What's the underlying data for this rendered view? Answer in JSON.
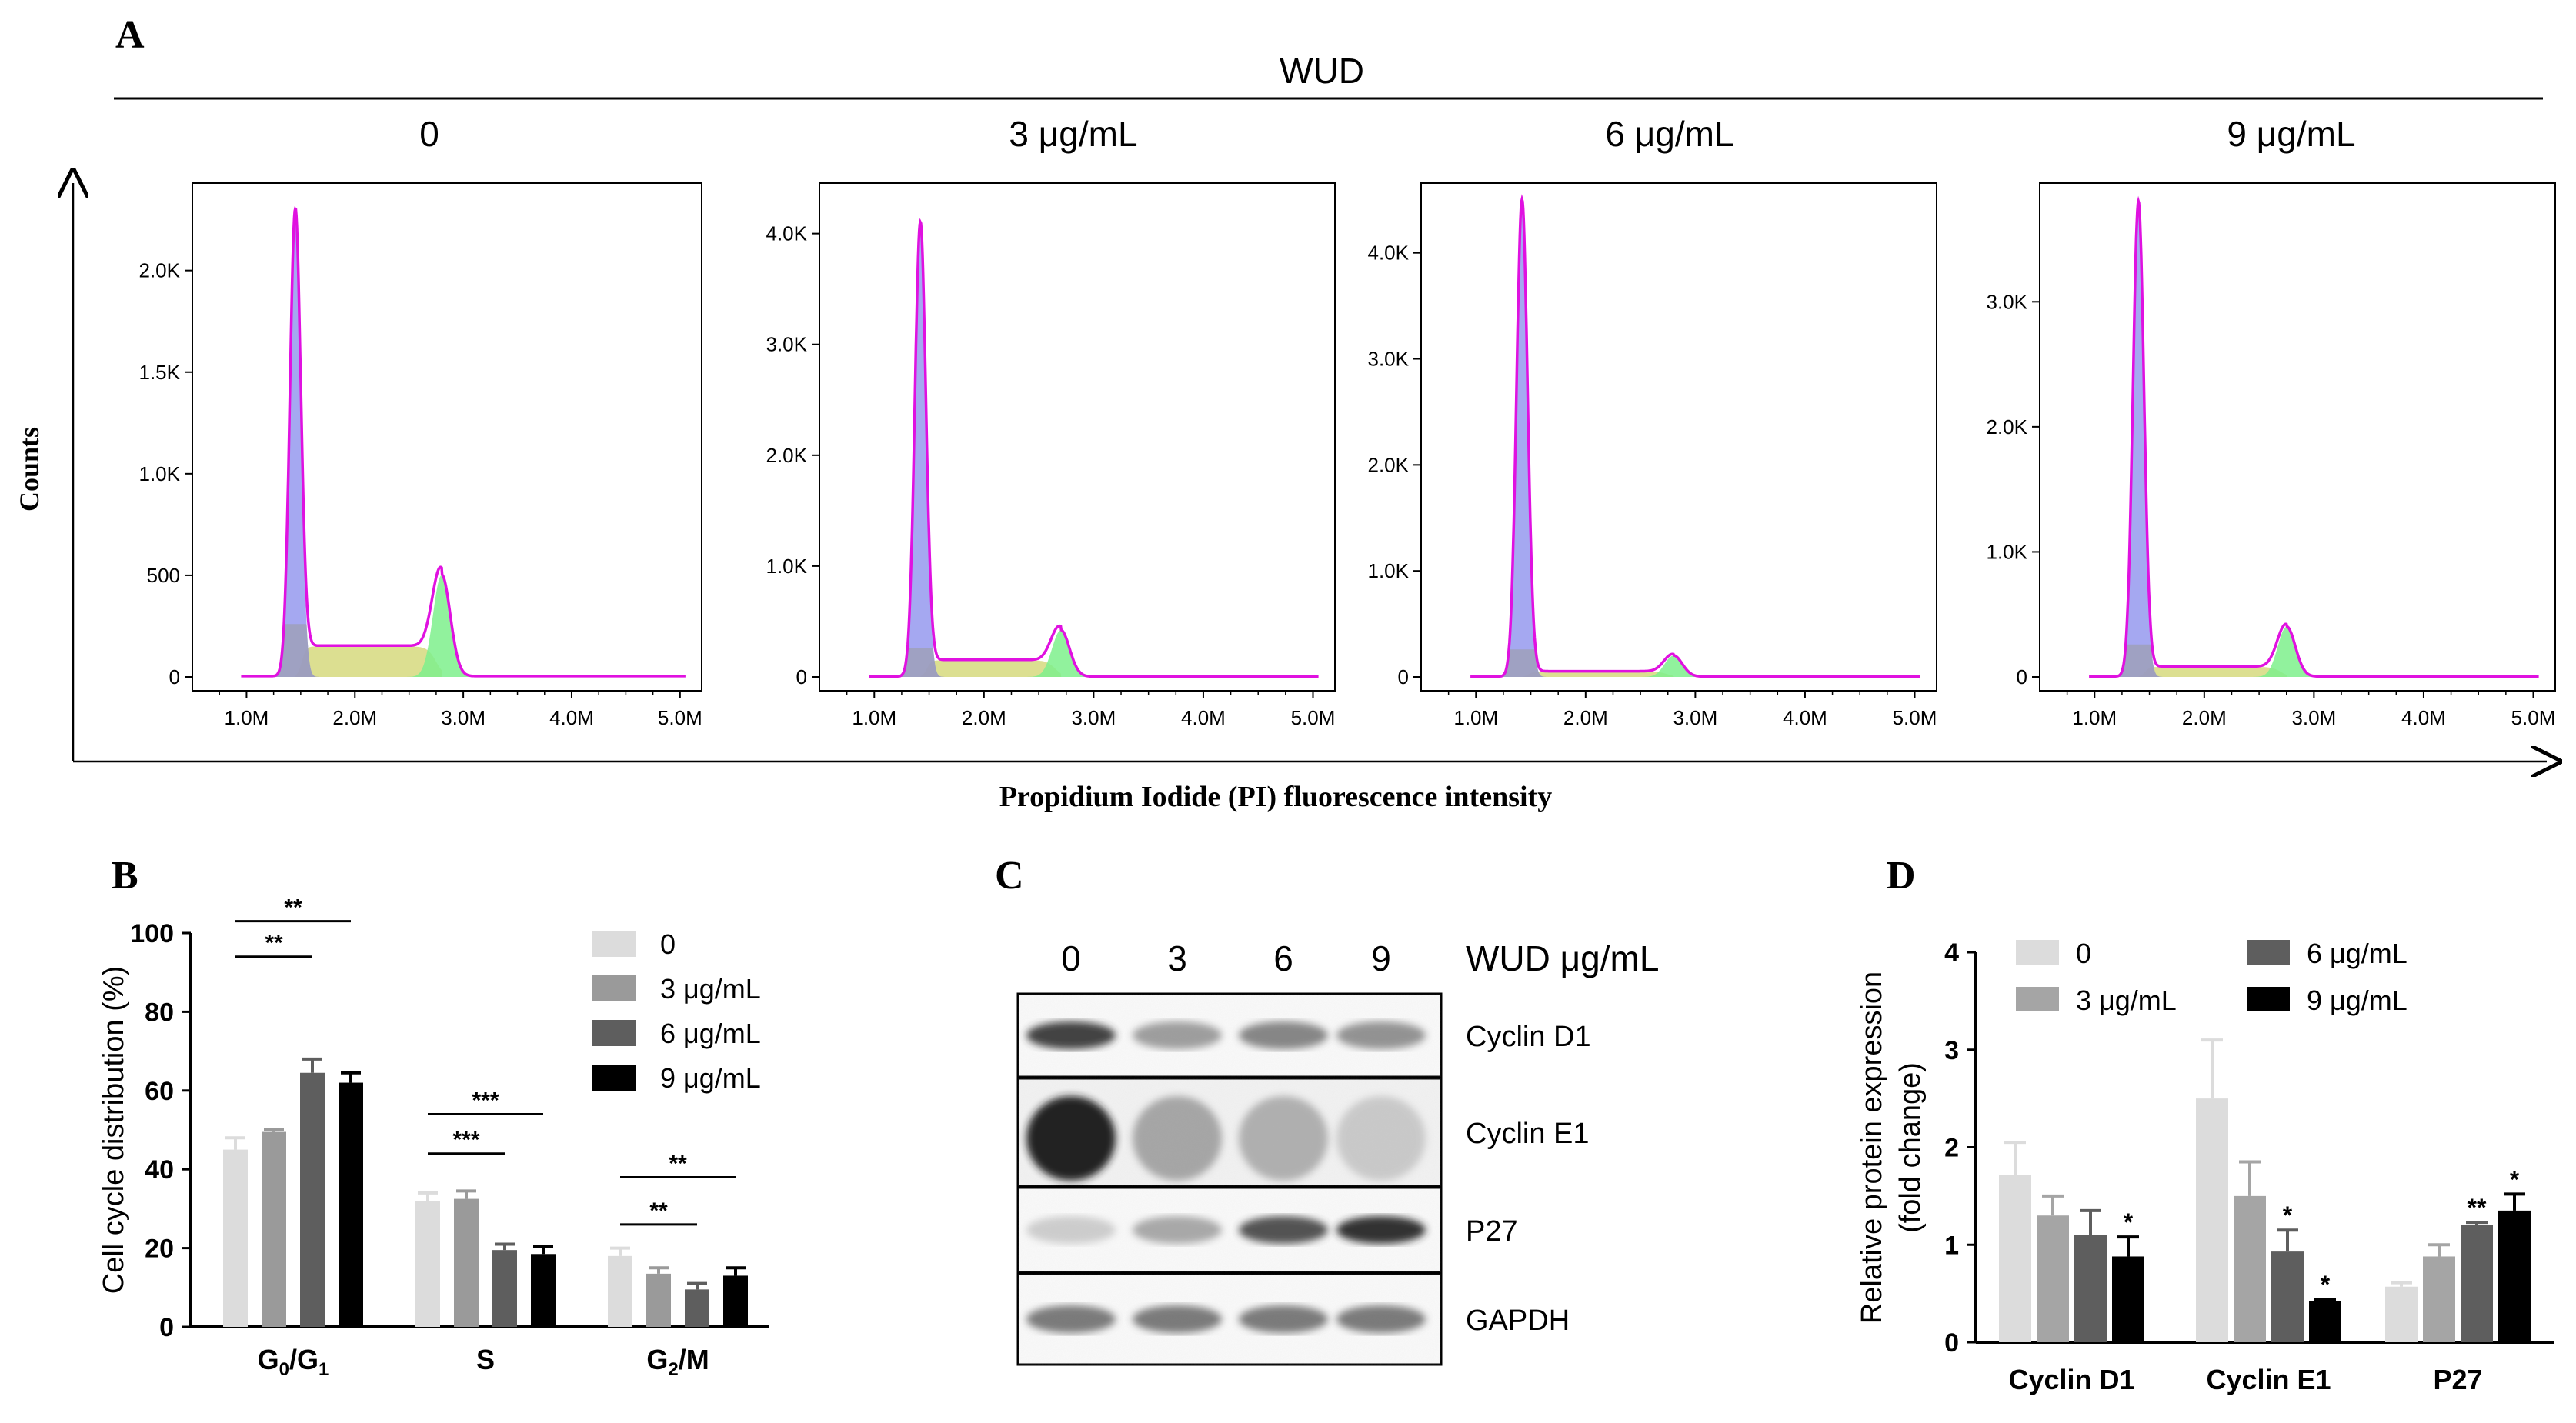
{
  "panel_labels": {
    "a": "A",
    "b": "B",
    "c": "C",
    "d": "D"
  },
  "panel_a": {
    "group_label": "WUD",
    "y_axis_label": "Counts",
    "x_axis_label": "Propidium Iodide (PI) fluorescence intensity",
    "x_ticks": [
      "1.0M",
      "2.0M",
      "3.0M",
      "4.0M",
      "5.0M"
    ],
    "colors": {
      "total": "#e011e0",
      "g1": "#9b9ef0",
      "s": "#d6d97e",
      "g2": "#7ef08c",
      "overlay": "#9a9a9a"
    }
  },
  "chart_data": [
    {
      "type": "histogram",
      "title": "0",
      "xlabel": "Propidium Iodide (PI) fluorescence intensity",
      "ylabel": "Counts",
      "xlim": [
        0.5,
        5.2
      ],
      "ylim": [
        0,
        2400
      ],
      "y_ticks": [
        {
          "value": 0,
          "label": "0"
        },
        {
          "value": 500,
          "label": "500"
        },
        {
          "value": 1000,
          "label": "1.0K"
        },
        {
          "value": 1500,
          "label": "1.5K"
        },
        {
          "value": 2000,
          "label": "2.0K"
        }
      ],
      "peaks": {
        "g1_position": 1.45,
        "g1_height": 2300,
        "s_plateau": 150,
        "g2_position": 2.8,
        "g2_height": 500
      }
    },
    {
      "type": "histogram",
      "title": "3 μg/mL",
      "xlabel": "Propidium Iodide (PI) fluorescence intensity",
      "ylabel": "Counts",
      "xlim": [
        0.5,
        5.2
      ],
      "ylim": [
        0,
        4400
      ],
      "y_ticks": [
        {
          "value": 0,
          "label": "0"
        },
        {
          "value": 1000,
          "label": "1.0K"
        },
        {
          "value": 2000,
          "label": "2.0K"
        },
        {
          "value": 3000,
          "label": "3.0K"
        },
        {
          "value": 4000,
          "label": "4.0K"
        }
      ],
      "peaks": {
        "g1_position": 1.42,
        "g1_height": 4100,
        "s_plateau": 150,
        "g2_position": 2.7,
        "g2_height": 420
      }
    },
    {
      "type": "histogram",
      "title": "6 μg/mL",
      "xlabel": "Propidium Iodide (PI) fluorescence intensity",
      "ylabel": "Counts",
      "xlim": [
        0.5,
        5.2
      ],
      "ylim": [
        0,
        4600
      ],
      "y_ticks": [
        {
          "value": 0,
          "label": "0"
        },
        {
          "value": 1000,
          "label": "1.0K"
        },
        {
          "value": 2000,
          "label": "2.0K"
        },
        {
          "value": 3000,
          "label": "3.0K"
        },
        {
          "value": 4000,
          "label": "4.0K"
        }
      ],
      "peaks": {
        "g1_position": 1.42,
        "g1_height": 4500,
        "s_plateau": 50,
        "g2_position": 2.8,
        "g2_height": 200
      }
    },
    {
      "type": "histogram",
      "title": "9 μg/mL",
      "xlabel": "Propidium Iodide (PI) fluorescence intensity",
      "ylabel": "Counts",
      "xlim": [
        0.5,
        5.2
      ],
      "ylim": [
        0,
        3900
      ],
      "y_ticks": [
        {
          "value": 0,
          "label": "0"
        },
        {
          "value": 1000,
          "label": "1.0K"
        },
        {
          "value": 2000,
          "label": "2.0K"
        },
        {
          "value": 3000,
          "label": "3.0K"
        }
      ],
      "peaks": {
        "g1_position": 1.4,
        "g1_height": 3800,
        "s_plateau": 80,
        "g2_position": 2.75,
        "g2_height": 400
      }
    },
    {
      "type": "bar",
      "ylabel": "Cell cycle distribution (%)",
      "ylim": [
        0,
        100
      ],
      "y_ticks": [
        0,
        20,
        40,
        60,
        80,
        100
      ],
      "categories": [
        {
          "main": "G",
          "sub": "0",
          "mid": "/G",
          "sub2": "1"
        },
        {
          "main": "S",
          "sub": "",
          "mid": "",
          "sub2": ""
        },
        {
          "main": "G",
          "sub": "2",
          "mid": "/M",
          "sub2": ""
        }
      ],
      "series": [
        {
          "name": "0",
          "color": "#dcdcdc",
          "values": [
            45,
            32,
            18
          ],
          "errors": [
            3,
            2,
            2
          ]
        },
        {
          "name": "3 μg/mL",
          "color": "#9a9a9a",
          "values": [
            49.5,
            32.5,
            13.5
          ],
          "errors": [
            0.5,
            2,
            1.5
          ]
        },
        {
          "name": "6 μg/mL",
          "color": "#5e5e5e",
          "values": [
            64.5,
            19.5,
            9.5
          ],
          "errors": [
            3.5,
            1.5,
            1.5
          ]
        },
        {
          "name": "9 μg/mL",
          "color": "#000000",
          "values": [
            62,
            18.5,
            13
          ],
          "errors": [
            2.5,
            2,
            2
          ]
        }
      ],
      "brackets": [
        {
          "group": 0,
          "from": 0,
          "to": 2,
          "value": 94,
          "label": "**"
        },
        {
          "group": 0,
          "from": 0,
          "to": 3,
          "value": 103,
          "label": "**"
        },
        {
          "group": 1,
          "from": 0,
          "to": 2,
          "value": 44,
          "label": "***"
        },
        {
          "group": 1,
          "from": 0,
          "to": 3,
          "value": 54,
          "label": "***"
        },
        {
          "group": 2,
          "from": 0,
          "to": 2,
          "value": 26,
          "label": "**"
        },
        {
          "group": 2,
          "from": 0,
          "to": 3,
          "value": 38,
          "label": "**"
        }
      ]
    },
    {
      "type": "bar",
      "ylabel": "Relative protein expression",
      "ylabel2": "(fold change)",
      "ylim": [
        0,
        4
      ],
      "y_ticks": [
        0,
        1,
        2,
        3,
        4
      ],
      "categories": [
        "Cyclin D1",
        "Cyclin E1",
        "P27"
      ],
      "series": [
        {
          "name": "0",
          "color": "#dcdcdc",
          "values": [
            1.72,
            2.5,
            0.57
          ],
          "errors": [
            0.33,
            0.6,
            0.04
          ]
        },
        {
          "name": "3 μg/mL",
          "color": "#a5a5a5",
          "values": [
            1.3,
            1.5,
            0.88
          ],
          "errors": [
            0.2,
            0.35,
            0.12
          ]
        },
        {
          "name": "6 μg/mL",
          "color": "#5e5e5e",
          "values": [
            1.1,
            0.93,
            1.2
          ],
          "errors": [
            0.25,
            0.22,
            0.03
          ]
        },
        {
          "name": "9 μg/mL",
          "color": "#000000",
          "values": [
            0.88,
            0.42,
            1.35
          ],
          "errors": [
            0.2,
            0.02,
            0.17
          ]
        }
      ],
      "significance": [
        {
          "cat": 0,
          "series": 3,
          "label": "*"
        },
        {
          "cat": 1,
          "series": 2,
          "label": "*"
        },
        {
          "cat": 1,
          "series": 3,
          "label": "*"
        },
        {
          "cat": 2,
          "series": 2,
          "label": "**"
        },
        {
          "cat": 2,
          "series": 3,
          "label": "*"
        }
      ]
    }
  ],
  "panel_c": {
    "header": "WUD μg/mL",
    "lanes": [
      "0",
      "3",
      "6",
      "9"
    ],
    "blots": [
      {
        "label": "Cyclin D1",
        "intensities": [
          0.85,
          0.5,
          0.6,
          0.55
        ]
      },
      {
        "label": "Cyclin E1",
        "intensities": [
          0.95,
          0.45,
          0.4,
          0.25
        ]
      },
      {
        "label": "P27",
        "intensities": [
          0.25,
          0.45,
          0.8,
          0.9
        ]
      },
      {
        "label": "GAPDH",
        "intensities": [
          0.65,
          0.65,
          0.65,
          0.65
        ]
      }
    ]
  }
}
